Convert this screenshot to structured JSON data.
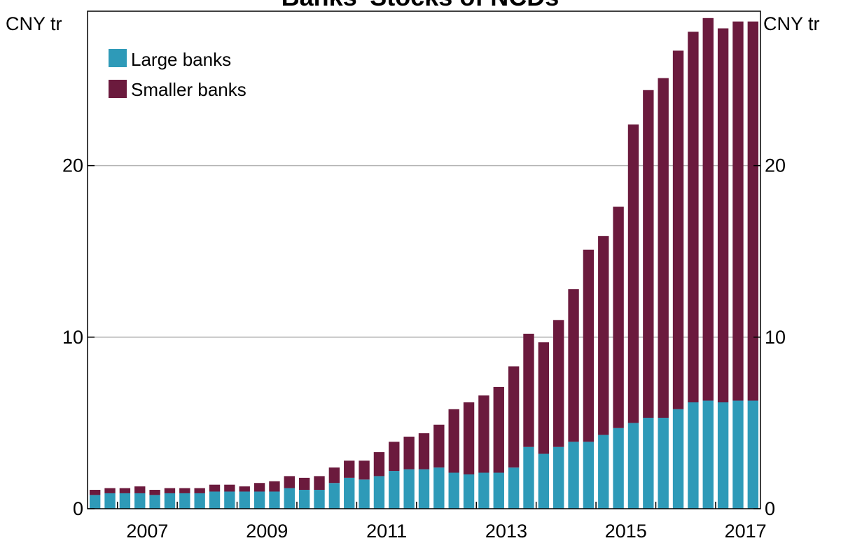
{
  "chart_data": {
    "type": "bar",
    "stacked": true,
    "title": "Banks' Stocks of NCDs",
    "left_unit": "CNY tr",
    "right_unit": "CNY tr",
    "ylim": [
      0,
      29
    ],
    "yticks": [
      0,
      10,
      20
    ],
    "ytick_labels": [
      "0",
      "10",
      "20"
    ],
    "xlim": [
      2006.5,
      2017.75
    ],
    "xticks": [
      2007,
      2009,
      2011,
      2013,
      2015,
      2017
    ],
    "xtick_labels": [
      "2007",
      "2009",
      "2011",
      "2013",
      "2015",
      "2017"
    ],
    "grid": true,
    "legend_position": "top-left",
    "x": [
      2006.625,
      2006.875,
      2007.125,
      2007.375,
      2007.625,
      2007.875,
      2008.125,
      2008.375,
      2008.625,
      2008.875,
      2009.125,
      2009.375,
      2009.625,
      2009.875,
      2010.125,
      2010.375,
      2010.625,
      2010.875,
      2011.125,
      2011.375,
      2011.625,
      2011.875,
      2012.125,
      2012.375,
      2012.625,
      2012.875,
      2013.125,
      2013.375,
      2013.625,
      2013.875,
      2014.125,
      2014.375,
      2014.625,
      2014.875,
      2015.125,
      2015.375,
      2015.625,
      2015.875,
      2016.125,
      2016.375,
      2016.625,
      2016.875,
      2017.125,
      2017.375,
      2017.625
    ],
    "series": [
      {
        "name": "Large banks",
        "color": "#2E9AB8",
        "values": [
          0.8,
          0.9,
          0.9,
          0.9,
          0.8,
          0.9,
          0.9,
          0.9,
          1.0,
          1.0,
          1.0,
          1.0,
          1.0,
          1.2,
          1.1,
          1.1,
          1.5,
          1.8,
          1.7,
          1.9,
          2.2,
          2.3,
          2.3,
          2.4,
          2.1,
          2.0,
          2.1,
          2.1,
          2.4,
          3.6,
          3.2,
          3.6,
          3.9,
          3.9,
          4.3,
          4.7,
          5.0,
          5.3,
          5.3,
          5.8,
          6.2,
          6.3,
          6.2,
          6.3,
          6.3
        ]
      },
      {
        "name": "Smaller banks",
        "color": "#6B1A3D",
        "values": [
          0.3,
          0.3,
          0.3,
          0.4,
          0.3,
          0.3,
          0.3,
          0.3,
          0.4,
          0.4,
          0.3,
          0.5,
          0.6,
          0.7,
          0.7,
          0.8,
          0.9,
          1.0,
          1.1,
          1.4,
          1.7,
          1.9,
          2.1,
          2.5,
          3.7,
          4.2,
          4.5,
          5.0,
          5.9,
          6.6,
          6.5,
          7.4,
          8.9,
          11.2,
          11.6,
          12.9,
          17.4,
          19.1,
          19.8,
          20.9,
          21.6,
          22.3,
          21.8,
          22.1,
          22.1
        ]
      }
    ]
  }
}
